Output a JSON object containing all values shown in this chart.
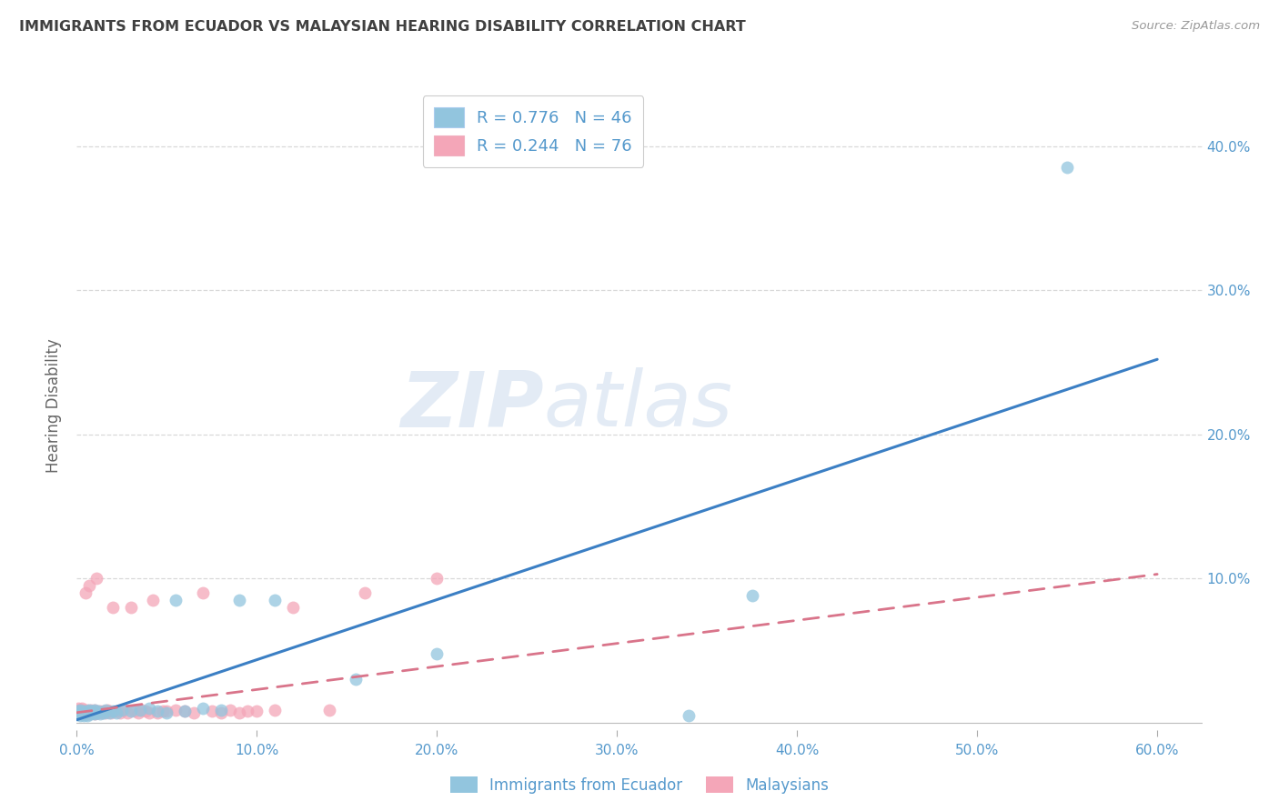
{
  "title": "IMMIGRANTS FROM ECUADOR VS MALAYSIAN HEARING DISABILITY CORRELATION CHART",
  "source": "Source: ZipAtlas.com",
  "ylabel": "Hearing Disability",
  "xlabel_ticks": [
    "0.0%",
    "10.0%",
    "20.0%",
    "30.0%",
    "40.0%",
    "50.0%",
    "60.0%"
  ],
  "xlabel_vals": [
    0.0,
    0.1,
    0.2,
    0.3,
    0.4,
    0.5,
    0.6
  ],
  "xlim": [
    0.0,
    0.625
  ],
  "ylim": [
    -0.005,
    0.445
  ],
  "right_ytick_vals": [
    0.1,
    0.2,
    0.3,
    0.4
  ],
  "right_ytick_labels": [
    "10.0%",
    "20.0%",
    "30.0%",
    "40.0%"
  ],
  "legend_entries": [
    {
      "label": "R = 0.776   N = 46",
      "color": "#92c5de"
    },
    {
      "label": "R = 0.244   N = 76",
      "color": "#f4a6b8"
    }
  ],
  "series1_label": "Immigrants from Ecuador",
  "series2_label": "Malaysians",
  "series1_color": "#92c5de",
  "series2_color": "#f4a6b8",
  "series1_line_color": "#3b7fc4",
  "series2_line_color": "#d9748a",
  "background_color": "#ffffff",
  "grid_color": "#d0d0d0",
  "title_color": "#404040",
  "axis_label_color": "#5599cc",
  "watermark_zip": "ZIP",
  "watermark_atlas": "atlas",
  "ecuador_x": [
    0.001,
    0.001,
    0.002,
    0.002,
    0.002,
    0.003,
    0.003,
    0.004,
    0.004,
    0.005,
    0.005,
    0.006,
    0.006,
    0.007,
    0.007,
    0.008,
    0.008,
    0.009,
    0.009,
    0.01,
    0.01,
    0.011,
    0.012,
    0.013,
    0.015,
    0.016,
    0.018,
    0.02,
    0.022,
    0.025,
    0.03,
    0.035,
    0.04,
    0.045,
    0.05,
    0.055,
    0.06,
    0.07,
    0.08,
    0.09,
    0.11,
    0.155,
    0.2,
    0.34,
    0.375,
    0.55
  ],
  "ecuador_y": [
    0.006,
    0.008,
    0.005,
    0.007,
    0.009,
    0.006,
    0.007,
    0.005,
    0.008,
    0.006,
    0.007,
    0.005,
    0.008,
    0.006,
    0.009,
    0.007,
    0.006,
    0.008,
    0.007,
    0.006,
    0.009,
    0.007,
    0.008,
    0.006,
    0.007,
    0.009,
    0.007,
    0.008,
    0.007,
    0.009,
    0.008,
    0.009,
    0.01,
    0.008,
    0.007,
    0.085,
    0.008,
    0.01,
    0.009,
    0.085,
    0.085,
    0.03,
    0.048,
    0.005,
    0.088,
    0.385
  ],
  "malaysian_x": [
    0.0,
    0.0,
    0.001,
    0.001,
    0.001,
    0.001,
    0.002,
    0.002,
    0.002,
    0.002,
    0.003,
    0.003,
    0.003,
    0.003,
    0.003,
    0.004,
    0.004,
    0.004,
    0.004,
    0.005,
    0.005,
    0.005,
    0.005,
    0.006,
    0.006,
    0.006,
    0.007,
    0.007,
    0.007,
    0.008,
    0.008,
    0.009,
    0.009,
    0.01,
    0.01,
    0.01,
    0.011,
    0.011,
    0.012,
    0.013,
    0.014,
    0.015,
    0.016,
    0.017,
    0.018,
    0.019,
    0.02,
    0.022,
    0.024,
    0.026,
    0.028,
    0.03,
    0.032,
    0.034,
    0.036,
    0.038,
    0.04,
    0.042,
    0.045,
    0.048,
    0.05,
    0.055,
    0.06,
    0.065,
    0.07,
    0.075,
    0.08,
    0.085,
    0.09,
    0.095,
    0.1,
    0.11,
    0.12,
    0.14,
    0.16,
    0.2
  ],
  "malaysian_y": [
    0.007,
    0.009,
    0.006,
    0.007,
    0.008,
    0.01,
    0.006,
    0.007,
    0.008,
    0.009,
    0.006,
    0.007,
    0.008,
    0.009,
    0.01,
    0.006,
    0.007,
    0.008,
    0.009,
    0.006,
    0.007,
    0.008,
    0.09,
    0.006,
    0.007,
    0.009,
    0.006,
    0.008,
    0.095,
    0.007,
    0.009,
    0.007,
    0.008,
    0.006,
    0.007,
    0.009,
    0.007,
    0.1,
    0.007,
    0.008,
    0.007,
    0.008,
    0.007,
    0.009,
    0.008,
    0.007,
    0.08,
    0.008,
    0.007,
    0.009,
    0.007,
    0.08,
    0.008,
    0.007,
    0.009,
    0.008,
    0.007,
    0.085,
    0.007,
    0.008,
    0.008,
    0.009,
    0.008,
    0.007,
    0.09,
    0.008,
    0.007,
    0.009,
    0.007,
    0.008,
    0.008,
    0.009,
    0.08,
    0.009,
    0.09,
    0.1
  ],
  "ec_line_x": [
    0.0,
    0.6
  ],
  "ec_line_y": [
    0.002,
    0.252
  ],
  "mal_line_x": [
    0.0,
    0.6
  ],
  "mal_line_y": [
    0.007,
    0.103
  ]
}
